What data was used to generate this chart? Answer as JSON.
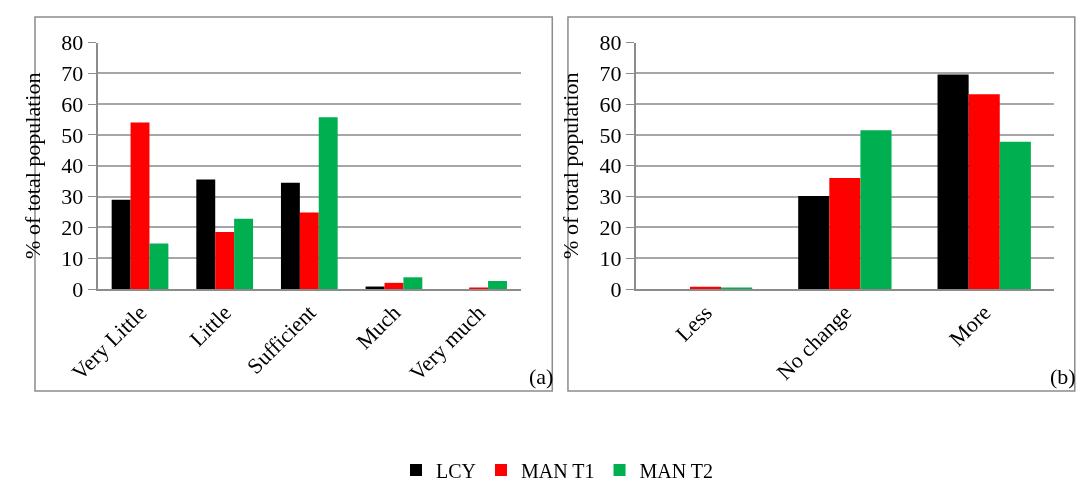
{
  "chart_data": [
    {
      "type": "bar",
      "categories": [
        "Very Little",
        "Little",
        "Sufficient",
        "Much",
        "Very much"
      ],
      "ylabel": "% of total population",
      "ylim": [
        0,
        80
      ],
      "yticks": [
        0,
        10,
        20,
        30,
        40,
        50,
        60,
        70,
        80
      ],
      "grid": "y",
      "legend": "bottom",
      "annotations": [
        "(a)"
      ],
      "series": [
        {
          "name": "LCY",
          "color": "#000000",
          "values": [
            29,
            35.5,
            34.5,
            0.8,
            0
          ]
        },
        {
          "name": "MAN T1",
          "color": "#ff0000",
          "values": [
            54,
            18.5,
            24.8,
            2,
            0.4
          ]
        },
        {
          "name": "MAN T2",
          "color": "#00b050",
          "values": [
            14.8,
            22.8,
            55.7,
            3.8,
            2.6
          ]
        }
      ]
    },
    {
      "type": "bar",
      "categories": [
        "Less",
        "No change",
        "More"
      ],
      "ylabel": "% of total population",
      "ylim": [
        0,
        80
      ],
      "yticks": [
        0,
        10,
        20,
        30,
        40,
        50,
        60,
        70,
        80
      ],
      "grid": "y",
      "legend": "bottom",
      "annotations": [
        "(b)"
      ],
      "series": [
        {
          "name": "LCY",
          "color": "#000000",
          "values": [
            0,
            30.2,
            69.6
          ]
        },
        {
          "name": "MAN T1",
          "color": "#ff0000",
          "values": [
            0.7,
            36,
            63.2
          ]
        },
        {
          "name": "MAN T2",
          "color": "#00b050",
          "values": [
            0.5,
            51.5,
            47.8
          ]
        }
      ]
    }
  ]
}
